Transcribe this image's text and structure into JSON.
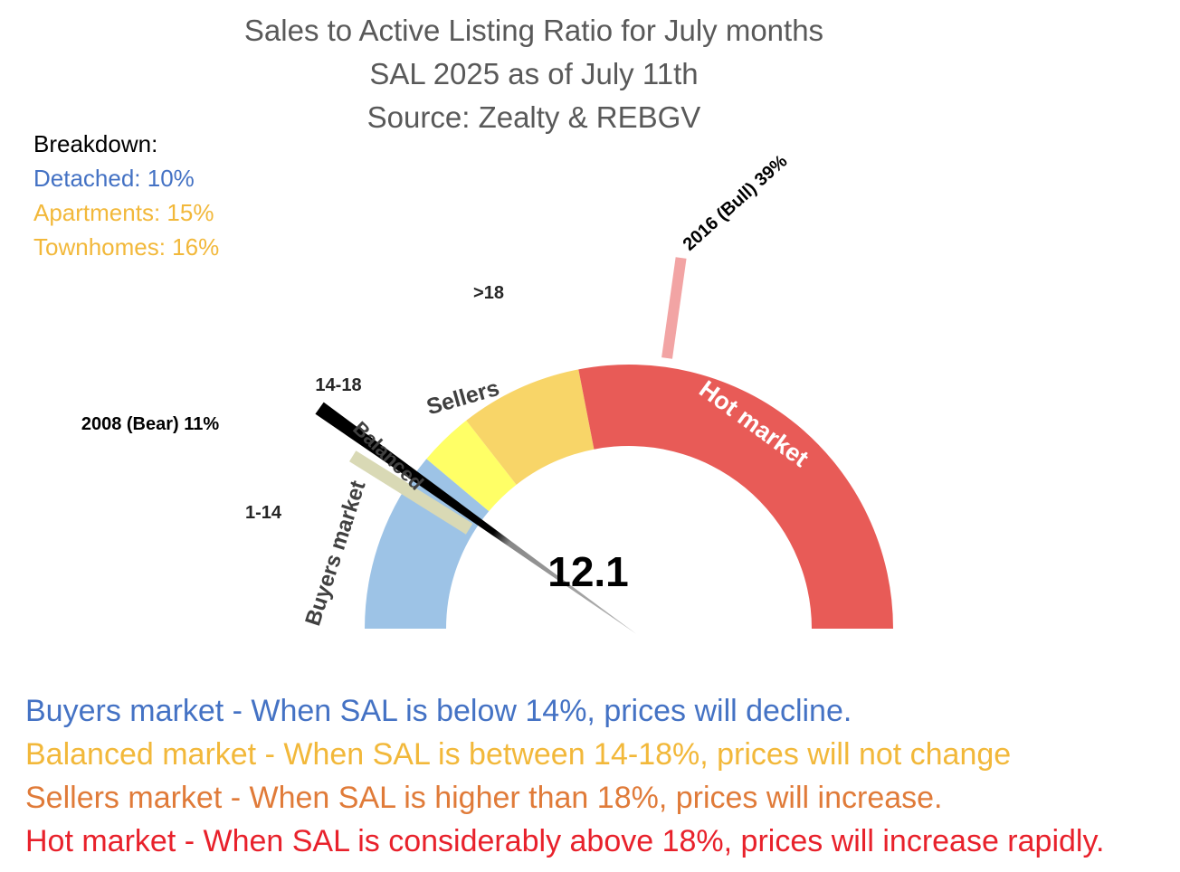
{
  "title": {
    "line1": "Sales to Active Listing Ratio for July months",
    "line2": "SAL 2025 as of July 11th",
    "line3": "Source: Zealty & REBGV"
  },
  "breakdown": {
    "heading": "Breakdown:",
    "items": [
      {
        "label": "Detached: 10%",
        "color": "#4472C4"
      },
      {
        "label": "Apartments: 15%",
        "color": "#F2B83A"
      },
      {
        "label": "Townhomes: 16%",
        "color": "#F2B83A"
      }
    ]
  },
  "chart_data": {
    "type": "gauge",
    "value": 12.1,
    "value_label": "12.1",
    "segments": [
      {
        "name": "Buyers market",
        "range_label": "1-14",
        "color": "#9DC3E6",
        "text_color": "#404040"
      },
      {
        "name": "Balanced",
        "range_label": "14-18",
        "color": "#FFFF66",
        "text_color": "#404040"
      },
      {
        "name": "Sellers",
        "range_label": ">18",
        "color": "#F8D568",
        "text_color": "#404040"
      },
      {
        "name": "Hot market",
        "range_label": "",
        "color": "#E85B57",
        "text_color": "#ffffff"
      }
    ],
    "markers": [
      {
        "label": "2008 (Bear) 11%",
        "value": 11,
        "color": "#D9D9B5"
      },
      {
        "label": "2016 (Bull) 39%",
        "value": 39,
        "color": "#F2A4A4"
      }
    ],
    "needle_colors": [
      "#000000",
      "#888888"
    ]
  },
  "legend": [
    {
      "text": "Buyers market - When SAL is below 14%, prices will decline.",
      "color": "#4472C4"
    },
    {
      "text": "Balanced market - When SAL is between 14-18%, prices will not change",
      "color": "#F2B83A"
    },
    {
      "text": "Sellers market  - When SAL is higher than 18%, prices will increase.",
      "color": "#E07B39"
    },
    {
      "text": "Hot market - When SAL is considerably above 18%, prices will increase rapidly.",
      "color": "#E8212B"
    }
  ]
}
